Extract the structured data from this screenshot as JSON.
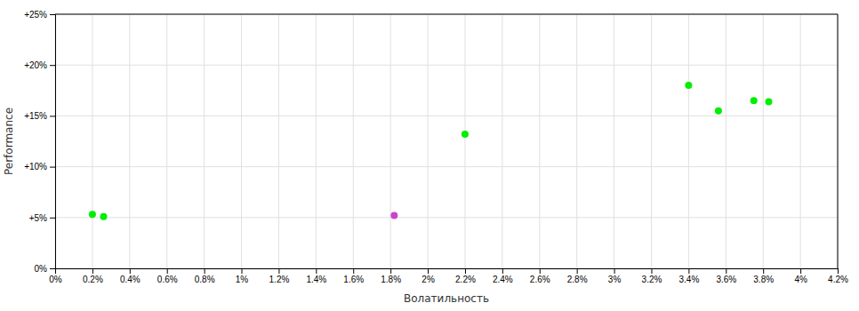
{
  "chart_data": {
    "type": "scatter",
    "x_label": "Волатильность",
    "y_label": "Performance",
    "x": [
      0.2,
      0.26,
      1.82,
      2.2,
      3.4,
      3.56,
      3.75,
      3.83
    ],
    "values": [
      5.3,
      5.1,
      5.2,
      13.2,
      18.0,
      15.5,
      16.5,
      16.4
    ],
    "colors": [
      "#00ee00",
      "#00ee00",
      "#cc44cc",
      "#00ee00",
      "#00ee00",
      "#00ee00",
      "#00ee00",
      "#00ee00"
    ],
    "xlim": [
      0.0,
      4.2
    ],
    "ylim": [
      0,
      25
    ],
    "xticks": [
      {
        "value": 0.0,
        "label": "0%"
      },
      {
        "value": 0.2,
        "label": "0.2%"
      },
      {
        "value": 0.4,
        "label": "0.4%"
      },
      {
        "value": 0.6,
        "label": "0.6%"
      },
      {
        "value": 0.8,
        "label": "0.8%"
      },
      {
        "value": 1.0,
        "label": "1%"
      },
      {
        "value": 1.2,
        "label": "1.2%"
      },
      {
        "value": 1.4,
        "label": "1.4%"
      },
      {
        "value": 1.6,
        "label": "1.6%"
      },
      {
        "value": 1.8,
        "label": "1.8%"
      },
      {
        "value": 2.0,
        "label": "2%"
      },
      {
        "value": 2.2,
        "label": "2.2%"
      },
      {
        "value": 2.4,
        "label": "2.4%"
      },
      {
        "value": 2.6,
        "label": "2.6%"
      },
      {
        "value": 2.8,
        "label": "2.8%"
      },
      {
        "value": 3.0,
        "label": "3%"
      },
      {
        "value": 3.2,
        "label": "3.2%"
      },
      {
        "value": 3.4,
        "label": "3.4%"
      },
      {
        "value": 3.6,
        "label": "3.6%"
      },
      {
        "value": 3.8,
        "label": "3.8%"
      },
      {
        "value": 4.0,
        "label": "4%"
      },
      {
        "value": 4.2,
        "label": "4.2%"
      }
    ],
    "yticks": [
      {
        "value": 0,
        "label": "0%"
      },
      {
        "value": 5,
        "label": "+5%"
      },
      {
        "value": 10,
        "label": "+10%"
      },
      {
        "value": 15,
        "label": "+15%"
      },
      {
        "value": 20,
        "label": "+20%"
      },
      {
        "value": 25,
        "label": "+25%"
      }
    ],
    "grid": true
  }
}
